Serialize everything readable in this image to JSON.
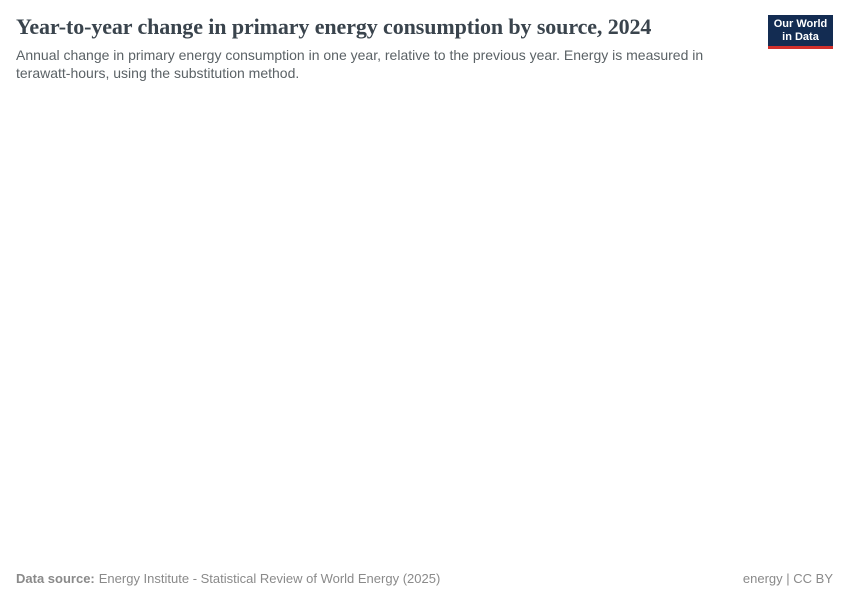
{
  "header": {
    "title": "Year-to-year change in primary energy consumption by source, 2024",
    "subtitle": "Annual change in primary energy consumption in one year, relative to the previous year. Energy is measured in terawatt-hours, using the substitution method."
  },
  "logo": {
    "line1": "Our World",
    "line2": "in Data"
  },
  "footer": {
    "data_source_label": "Data source:",
    "data_source_value": "Energy Institute - Statistical Review of World Energy (2025)",
    "right_text": "energy | CC BY"
  },
  "colors": {
    "title": "#3a444d",
    "subtitle": "#5b6266",
    "footer": "#8a8a8a",
    "logo_navy": "#132c52",
    "logo_red": "#d2302c",
    "background": "#ffffff"
  },
  "chart_data": {
    "type": "bar",
    "title": "Year-to-year change in primary energy consumption by source, 2024",
    "subtitle": "Annual change in primary energy consumption in one year, relative to the previous year. Energy is measured in terawatt-hours, using the substitution method.",
    "data_source": "Energy Institute - Statistical Review of World Energy (2025)",
    "categories": [],
    "series": [],
    "note": "Plot area is blank in the screenshot; no axes, gridlines, legend, or data points are rendered."
  }
}
